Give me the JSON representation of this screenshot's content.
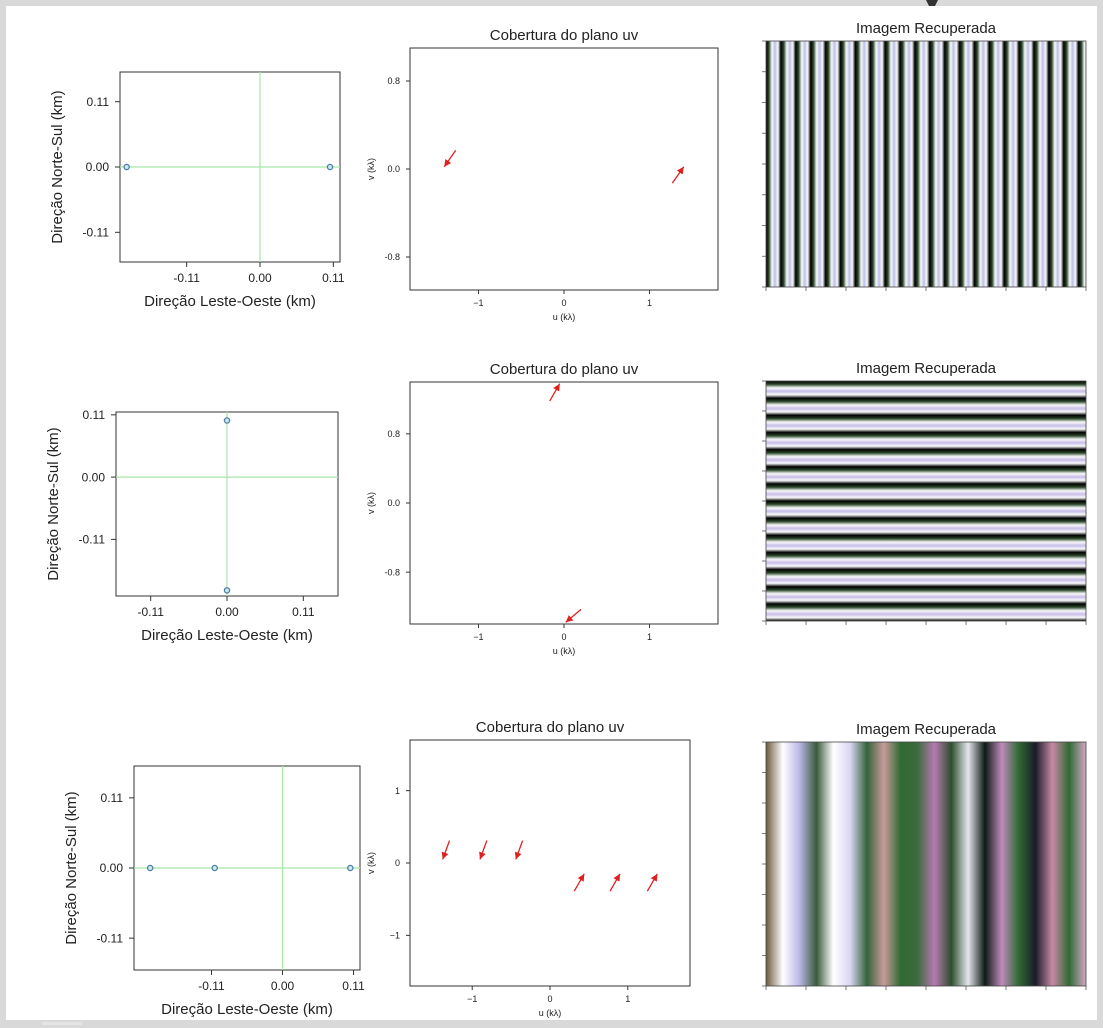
{
  "text": {
    "uv_title": "Cobertura do plano uv",
    "image_title": "Imagem Recuperada",
    "array_xlabel": "Direção Leste-Oeste (km)",
    "array_ylabel": "Direção Norte-Sul (km)",
    "uv_xlabel": "u (kλ)",
    "uv_ylabel": "v (kλ)"
  },
  "colors": {
    "baseline_line": "#a8e6a8",
    "antenna_marker": "#4a7fa0",
    "arrow": "#e02020",
    "axis": "#333333"
  },
  "chart_data": [
    {
      "id": "array-row1",
      "type": "scatter",
      "xlabel": "Direção Leste-Oeste (km)",
      "ylabel": "Direção Norte-Sul (km)",
      "xlim": [
        -0.21,
        0.12
      ],
      "ylim": [
        -0.16,
        0.16
      ],
      "xticks": [
        -0.11,
        0.0,
        0.11
      ],
      "xtick_labels": [
        "-0.11",
        "0.00",
        "0.11"
      ],
      "yticks": [
        0.11,
        0.0,
        -0.11
      ],
      "ytick_labels": [
        "0.11",
        "0.00",
        "-0.11"
      ],
      "cross": [
        0.0,
        0.0
      ],
      "points": [
        {
          "x": -0.2,
          "y": 0.0
        },
        {
          "x": 0.105,
          "y": 0.0
        }
      ]
    },
    {
      "id": "uv-row1",
      "type": "scatter",
      "title": "Cobertura do plano uv",
      "xlabel": "u (kλ)",
      "ylabel": "v (kλ)",
      "xlim": [
        -1.8,
        1.8
      ],
      "ylim": [
        -1.1,
        1.1
      ],
      "xticks": [
        -1,
        0,
        1
      ],
      "xtick_labels": [
        "−1",
        "0",
        "1"
      ],
      "yticks": [
        0.8,
        0.0,
        -0.8
      ],
      "ytick_labels": [
        "0.8",
        "0.0",
        "-0.8"
      ],
      "points": [
        {
          "x": -1.4,
          "y": 0.02,
          "angle": 235
        },
        {
          "x": 1.4,
          "y": 0.02,
          "angle": 55
        }
      ]
    },
    {
      "id": "image-row1",
      "type": "heatmap",
      "title": "Imagem Recuperada",
      "orientation": "vertical-stripes",
      "periods": 21.5,
      "palette": [
        "#000000",
        "#2d4a2d",
        "#ffffff",
        "#b9bde6",
        "#ffffff",
        "#000000"
      ]
    },
    {
      "id": "array-row2",
      "type": "scatter",
      "xlabel": "Direção Leste-Oeste (km)",
      "ylabel": "Direção Norte-Sul (km)",
      "xlim": [
        -0.16,
        0.16
      ],
      "ylim": [
        -0.21,
        0.115
      ],
      "xticks": [
        -0.11,
        0.0,
        0.11
      ],
      "xtick_labels": [
        "-0.11",
        "0.00",
        "0.11"
      ],
      "yticks": [
        0.11,
        0.0,
        -0.11
      ],
      "ytick_labels": [
        "0.11",
        "0.00",
        "-0.11"
      ],
      "cross": [
        0.0,
        0.0
      ],
      "points": [
        {
          "x": 0.0,
          "y": 0.1
        },
        {
          "x": 0.0,
          "y": -0.2
        }
      ]
    },
    {
      "id": "uv-row2",
      "type": "scatter",
      "title": "Cobertura do plano uv",
      "xlabel": "u (kλ)",
      "ylabel": "v (kλ)",
      "xlim": [
        -1.8,
        1.8
      ],
      "ylim": [
        -1.4,
        1.4
      ],
      "xticks": [
        -1,
        0,
        1
      ],
      "xtick_labels": [
        "−1",
        "0",
        "1"
      ],
      "yticks": [
        0.8,
        0.0,
        -0.8
      ],
      "ytick_labels": [
        "0.8",
        "0.0",
        "-0.8"
      ],
      "points": [
        {
          "x": -0.05,
          "y": 1.38,
          "angle": 60
        },
        {
          "x": 0.02,
          "y": -1.38,
          "angle": 220
        }
      ]
    },
    {
      "id": "image-row2",
      "type": "heatmap",
      "title": "Imagem Recuperada",
      "orientation": "horizontal-stripes",
      "periods": 14,
      "palette": [
        "#000000",
        "#2d4a2d",
        "#ffffff",
        "#c4b9e6",
        "#ffffff",
        "#000000"
      ]
    },
    {
      "id": "array-row3",
      "type": "scatter",
      "xlabel": "Direção Leste-Oeste (km)",
      "ylabel": "Direção Norte-Sul (km)",
      "xlim": [
        -0.23,
        0.12
      ],
      "ylim": [
        -0.16,
        0.16
      ],
      "xticks": [
        -0.11,
        0.0,
        0.11
      ],
      "xtick_labels": [
        "-0.11",
        "0.00",
        "0.11"
      ],
      "yticks": [
        0.11,
        0.0,
        -0.11
      ],
      "ytick_labels": [
        "0.11",
        "0.00",
        "-0.11"
      ],
      "cross": [
        0.0,
        0.0
      ],
      "points": [
        {
          "x": -0.205,
          "y": 0.0
        },
        {
          "x": -0.105,
          "y": 0.0
        },
        {
          "x": 0.105,
          "y": 0.0
        }
      ]
    },
    {
      "id": "uv-row3",
      "type": "scatter",
      "title": "Cobertura do plano uv",
      "xlabel": "u (kλ)",
      "ylabel": "v (kλ)",
      "xlim": [
        -1.8,
        1.8
      ],
      "ylim": [
        -1.7,
        1.7
      ],
      "xticks": [
        -1,
        0,
        1
      ],
      "xtick_labels": [
        "−1",
        "0",
        "1"
      ],
      "yticks": [
        1,
        0,
        -1
      ],
      "ytick_labels": [
        "1",
        "0",
        "−1"
      ],
      "points": [
        {
          "x": -1.38,
          "y": 0.05,
          "angle": 250
        },
        {
          "x": -0.9,
          "y": 0.05,
          "angle": 250
        },
        {
          "x": -0.44,
          "y": 0.05,
          "angle": 250
        },
        {
          "x": 0.44,
          "y": -0.15,
          "angle": 60
        },
        {
          "x": 0.9,
          "y": -0.15,
          "angle": 60
        },
        {
          "x": 1.38,
          "y": -0.15,
          "angle": 60
        }
      ]
    },
    {
      "id": "image-row3",
      "type": "heatmap",
      "title": "Imagem Recuperada",
      "orientation": "vertical-bands",
      "bands": [
        "#6b5a3a",
        "#ffffff",
        "#b9b6e6",
        "#3a5a3a",
        "#ffffff",
        "#d9d6f2",
        "#34633a",
        "#c89b9b",
        "#2f6b34",
        "#3d6a3d",
        "#b77ab1",
        "#2c4f2c",
        "#e6e6ee",
        "#0e1a14",
        "#c08abc",
        "#2f6b34",
        "#1a1a2a",
        "#c789a4",
        "#2f6b34",
        "#d6a6c9"
      ]
    }
  ]
}
